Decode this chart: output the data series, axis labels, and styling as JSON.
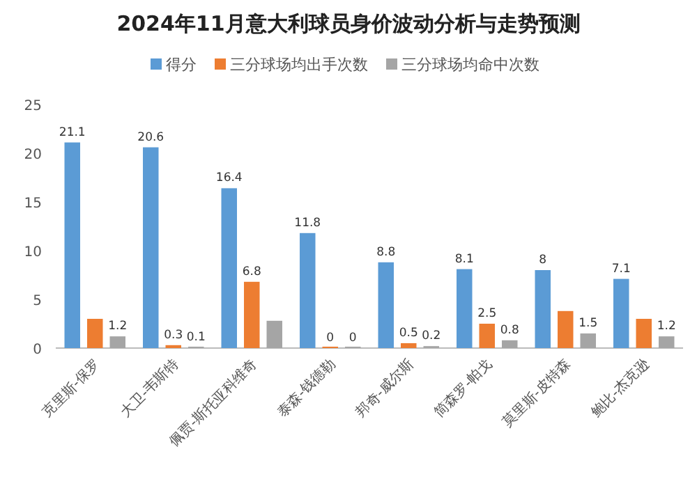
{
  "chart_data": {
    "type": "bar",
    "title": "2024年11月意大利球员身价波动分析与走势预测",
    "categories": [
      "克里斯-保罗",
      "大卫-韦斯特",
      "佩贾-斯托亚科维奇",
      "泰森-钱德勒",
      "邦奇-威尔斯",
      "简森罗-帕戈",
      "莫里斯-皮特森",
      "鲍比-杰克逊"
    ],
    "series": [
      {
        "name": "得分",
        "color": "#5b9bd5",
        "values": [
          21.1,
          20.6,
          16.4,
          11.8,
          8.8,
          8.1,
          8,
          7.1
        ],
        "value_labels": [
          "21.1",
          "20.6",
          "16.4",
          "11.8",
          "8.8",
          "8.1",
          "8",
          "7.1"
        ]
      },
      {
        "name": "三分球场均出手次数",
        "color": "#ed7d31",
        "values": [
          3.0,
          0.3,
          6.8,
          0,
          0.5,
          2.5,
          3.8,
          3.0
        ],
        "value_labels": [
          null,
          "0.3",
          "6.8",
          "0",
          "0.5",
          "2.5",
          null,
          null
        ]
      },
      {
        "name": "三分球场均命中次数",
        "color": "#a5a5a5",
        "values": [
          1.2,
          0.1,
          2.8,
          0,
          0.2,
          0.8,
          1.5,
          1.2
        ],
        "value_labels": [
          "1.2",
          "0.1",
          null,
          "0",
          "0.2",
          "0.8",
          "1.5",
          "1.2"
        ]
      }
    ],
    "ylim": [
      0,
      25
    ],
    "yticks": [
      0,
      5,
      10,
      15,
      20,
      25
    ],
    "legend": "top"
  }
}
